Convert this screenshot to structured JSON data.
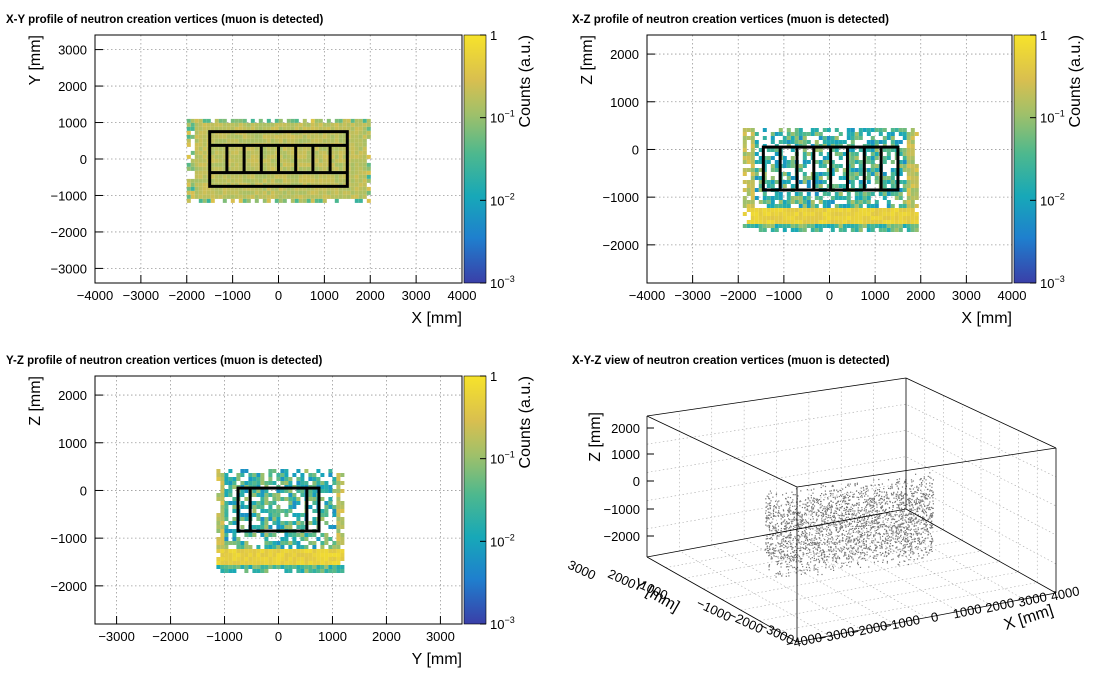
{
  "chart_data": [
    {
      "type": "heatmap",
      "title": "X-Y profile of neutron creation vertices (muon is detected)",
      "xlabel": "X [mm]",
      "ylabel": "Y [mm]",
      "zlabel": "Counts (a.u.)",
      "xlim": [
        -4000,
        4000
      ],
      "ylim": [
        -3400,
        3400
      ],
      "zscale": "log",
      "zlim": [
        0.001,
        1
      ],
      "grid": true,
      "x_ticks": [
        -4000,
        -3000,
        -2000,
        -1000,
        0,
        1000,
        2000,
        3000,
        4000
      ],
      "y_ticks": [
        -3000,
        -2000,
        -1000,
        0,
        1000,
        2000,
        3000
      ],
      "z_ticks": [
        "10^-3",
        "10^-2",
        "10^-1",
        "1"
      ],
      "hot_region": {
        "x": [
          -2000,
          2000
        ],
        "y": [
          -1100,
          1100
        ]
      },
      "detector_outline": {
        "x": [
          -1500,
          1500
        ],
        "y": [
          -750,
          750
        ]
      }
    },
    {
      "type": "heatmap",
      "title": "X-Z profile of neutron creation vertices (muon is detected)",
      "xlabel": "X [mm]",
      "ylabel": "Z [mm]",
      "zlabel": "Counts (a.u.)",
      "xlim": [
        -4000,
        4000
      ],
      "ylim": [
        -2800,
        2400
      ],
      "zscale": "log",
      "zlim": [
        0.001,
        1
      ],
      "grid": true,
      "x_ticks": [
        -4000,
        -3000,
        -2000,
        -1000,
        0,
        1000,
        2000,
        3000,
        4000
      ],
      "y_ticks": [
        -2000,
        -1000,
        0,
        1000,
        2000
      ],
      "z_ticks": [
        "10^-3",
        "10^-2",
        "10^-1",
        "1"
      ],
      "hot_region": {
        "x": [
          -1900,
          1900
        ],
        "y": [
          -1700,
          450
        ]
      },
      "detector_outline": {
        "x": [
          -1450,
          1500
        ],
        "y": [
          -850,
          50
        ]
      }
    },
    {
      "type": "heatmap",
      "title": "Y-Z profile of neutron creation vertices (muon is detected)",
      "xlabel": "Y [mm]",
      "ylabel": "Z [mm]",
      "zlabel": "Counts (a.u.)",
      "xlim": [
        -3400,
        3400
      ],
      "ylim": [
        -2800,
        2400
      ],
      "zscale": "log",
      "zlim": [
        0.001,
        1
      ],
      "grid": true,
      "x_ticks": [
        -3000,
        -2000,
        -1000,
        0,
        1000,
        2000,
        3000
      ],
      "y_ticks": [
        -2000,
        -1000,
        0,
        1000,
        2000
      ],
      "z_ticks": [
        "10^-3",
        "10^-2",
        "10^-1",
        "1"
      ],
      "hot_region": {
        "x": [
          -1150,
          1150
        ],
        "y": [
          -1700,
          450
        ]
      },
      "detector_outline": {
        "x": [
          -750,
          750
        ],
        "y": [
          -850,
          50
        ]
      }
    },
    {
      "type": "scatter",
      "title": "X-Y-Z view of neutron creation vertices (muon is detected)",
      "xlabel": "X [mm]",
      "ylabel": "Y [mm]",
      "zlabel": "Z [mm]",
      "x_ticks": [
        -4000,
        -3000,
        -2000,
        -1000,
        0,
        1000,
        2000,
        3000,
        4000
      ],
      "y_ticks": [
        -3000,
        -2000,
        -1000,
        0,
        1000,
        2000,
        3000
      ],
      "z_ticks": [
        -2000,
        -1000,
        0,
        1000,
        2000
      ],
      "point_color": "#777777"
    }
  ]
}
